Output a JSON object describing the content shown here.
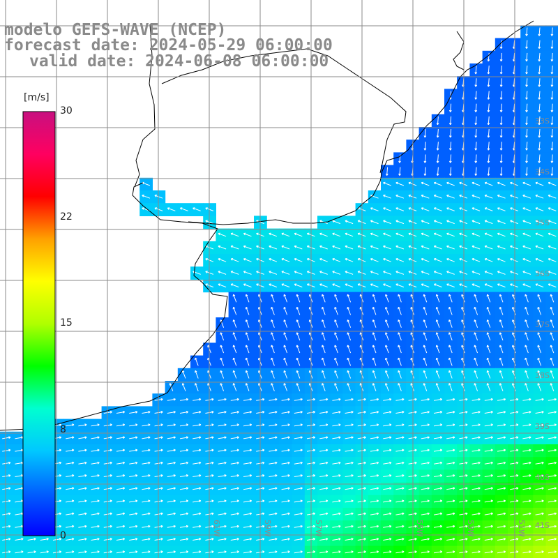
{
  "title": {
    "model": "modelo GEFS-WAVE (NCEP)",
    "forecast": "forecast date: 2024-05-29 06:00:00",
    "valid": "valid date: 2024-06-08 06:00:00"
  },
  "colorbar": {
    "unit": "[m/s]",
    "ticks": [
      "30",
      "22",
      "15",
      "8",
      "0"
    ],
    "tick_values": [
      30,
      22,
      15,
      8,
      0
    ],
    "min": 0,
    "max": 30,
    "colors": [
      "#0000ff",
      "#0060ff",
      "#00c8ff",
      "#00ffd0",
      "#00ff00",
      "#b0ff00",
      "#ffff00",
      "#ffa000",
      "#ff0000",
      "#ff0060",
      "#c81080"
    ]
  },
  "lat_labels": [
    "33S",
    "34S",
    "35S",
    "36S",
    "37S",
    "38S",
    "39S",
    "40S",
    "41S"
  ],
  "lon_labels": [
    "61W",
    "59W",
    "57W",
    "55W",
    "53W",
    "51W"
  ],
  "colors": {
    "land": "#ffffff",
    "coast": "#000000",
    "grid": "#8a8a8a",
    "arrow": "#ffffff",
    "label": "#8a8a8a"
  }
}
